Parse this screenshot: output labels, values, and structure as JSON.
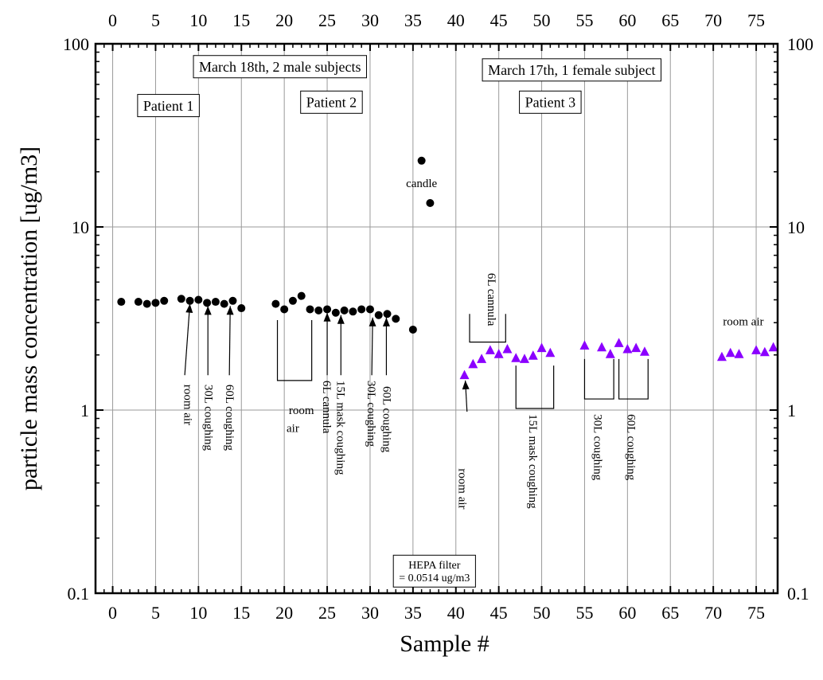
{
  "chart_data": {
    "type": "scatter",
    "title": "",
    "xlabel": "Sample #",
    "ylabel": "particle mass concentration [ug/m3]",
    "x_range": [
      -2,
      77.5
    ],
    "y_range": [
      0.1,
      100
    ],
    "y_scale": "log",
    "x_ticks": [
      0,
      5,
      10,
      15,
      20,
      25,
      30,
      35,
      40,
      45,
      50,
      55,
      60,
      65,
      70,
      75
    ],
    "y_ticks": [
      0.1,
      1,
      10,
      100
    ],
    "y_tick_labels": [
      "0.1",
      "1",
      "10",
      "100"
    ],
    "grid": true,
    "series": [
      {
        "marker": "circle",
        "color": "#000000",
        "points": [
          [
            1,
            3.9
          ],
          [
            3,
            3.9
          ],
          [
            4,
            3.8
          ],
          [
            5,
            3.85
          ],
          [
            6,
            3.95
          ],
          [
            8,
            4.05
          ],
          [
            9,
            3.95
          ],
          [
            10,
            4.0
          ],
          [
            11,
            3.85
          ],
          [
            12,
            3.9
          ],
          [
            13,
            3.8
          ],
          [
            14,
            3.95
          ],
          [
            15,
            3.6
          ],
          [
            19,
            3.8
          ],
          [
            20,
            3.55
          ],
          [
            21,
            3.95
          ],
          [
            22,
            4.2
          ],
          [
            23,
            3.55
          ],
          [
            24,
            3.5
          ],
          [
            25,
            3.55
          ],
          [
            26,
            3.4
          ],
          [
            27,
            3.5
          ],
          [
            28,
            3.45
          ],
          [
            29,
            3.55
          ],
          [
            30,
            3.55
          ],
          [
            31,
            3.3
          ],
          [
            32,
            3.35
          ],
          [
            33,
            3.15
          ],
          [
            35,
            2.75
          ],
          [
            36,
            23.0
          ],
          [
            37,
            13.5
          ]
        ]
      },
      {
        "marker": "triangle",
        "color": "#8b00ff",
        "points": [
          [
            41,
            1.55
          ],
          [
            42,
            1.78
          ],
          [
            43,
            1.9
          ],
          [
            44,
            2.12
          ],
          [
            45,
            2.02
          ],
          [
            46,
            2.15
          ],
          [
            47,
            1.92
          ],
          [
            48,
            1.9
          ],
          [
            49,
            1.98
          ],
          [
            50,
            2.18
          ],
          [
            51,
            2.05
          ],
          [
            55,
            2.25
          ],
          [
            57,
            2.2
          ],
          [
            58,
            2.02
          ],
          [
            59,
            2.32
          ],
          [
            60,
            2.15
          ],
          [
            61,
            2.18
          ],
          [
            62,
            2.08
          ],
          [
            71,
            1.95
          ],
          [
            72,
            2.05
          ],
          [
            73,
            2.02
          ],
          [
            75,
            2.12
          ],
          [
            76,
            2.07
          ],
          [
            77,
            2.2
          ]
        ]
      }
    ],
    "annotations": {
      "boxes": [
        {
          "text": "March 18th, 2 male subjects",
          "x": 19.5,
          "y": 75
        },
        {
          "text": "Patient 1",
          "x": 6.5,
          "y": 46
        },
        {
          "text": "Patient 2",
          "x": 25.5,
          "y": 48
        },
        {
          "text": "March 17th, 1 female subject",
          "x": 53.5,
          "y": 72
        },
        {
          "text": "Patient 3",
          "x": 51,
          "y": 48
        },
        {
          "text": "HEPA filter\n= 0.0514 ug/m3",
          "x": 37.5,
          "y": 0.132
        }
      ],
      "labels": [
        {
          "text": "candle",
          "x": 36,
          "y": 16.5,
          "rotated": false
        },
        {
          "text": "room air",
          "x": 73.5,
          "y": 2.9,
          "rotated": false
        },
        {
          "text": "room air",
          "x": 8.8,
          "y": 1.38,
          "rotated": true
        },
        {
          "text": "30L coughing",
          "x": 11.2,
          "y": 1.38,
          "rotated": true
        },
        {
          "text": "60L coughing",
          "x": 13.7,
          "y": 1.38,
          "rotated": true
        },
        {
          "text": "room",
          "x": 22.0,
          "y": 0.95,
          "rotated": false
        },
        {
          "text": "air",
          "x": 21.0,
          "y": 0.76,
          "rotated": false
        },
        {
          "text": "6L cannula",
          "x": 25.0,
          "y": 1.45,
          "rotated": true
        },
        {
          "text": "15L mask coughing",
          "x": 26.6,
          "y": 1.45,
          "rotated": true
        },
        {
          "text": "30L coughing",
          "x": 30.2,
          "y": 1.45,
          "rotated": true
        },
        {
          "text": "60L coughing",
          "x": 32.0,
          "y": 1.35,
          "rotated": true
        },
        {
          "text": "6L cannula",
          "x": 44.2,
          "y": 5.6,
          "rotated": true
        },
        {
          "text": "room air",
          "x": 40.8,
          "y": 0.48,
          "rotated": true
        },
        {
          "text": "15L mask coughing",
          "x": 49.0,
          "y": 0.95,
          "rotated": true
        },
        {
          "text": "30L coughing",
          "x": 56.6,
          "y": 0.95,
          "rotated": true
        },
        {
          "text": "60L coughing",
          "x": 60.5,
          "y": 0.95,
          "rotated": true
        }
      ]
    }
  }
}
